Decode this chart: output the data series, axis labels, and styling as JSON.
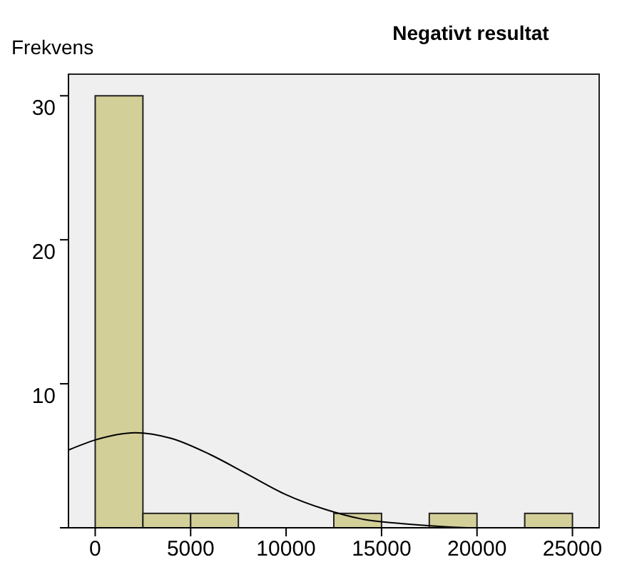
{
  "chart_data": {
    "type": "histogram",
    "title": "Negativt resultat",
    "ylabel": "Frekvens",
    "bins": [
      0,
      2500,
      5000,
      7500,
      10000,
      12500,
      15000,
      17500,
      20000,
      22500,
      25000
    ],
    "values": [
      30,
      1,
      1,
      0,
      0,
      1,
      0,
      1,
      0,
      1
    ],
    "color": "#d3cf98",
    "series": [
      {
        "type": "line",
        "color": "#000000",
        "x": [
          -1400,
          0,
          2100,
          4000,
          6000,
          8000,
          10000,
          12000,
          14000,
          16000,
          18000,
          19500
        ],
        "values": [
          5.4,
          6.1,
          6.6,
          6.2,
          5.1,
          3.7,
          2.3,
          1.3,
          0.6,
          0.3,
          0.1,
          0.0
        ]
      }
    ],
    "xlim": [
      -1400,
      26400
    ],
    "ylim": [
      0,
      31.5
    ],
    "xticks": [
      0,
      5000,
      10000,
      15000,
      20000,
      25000
    ],
    "yticks": [
      10,
      20,
      30
    ]
  }
}
